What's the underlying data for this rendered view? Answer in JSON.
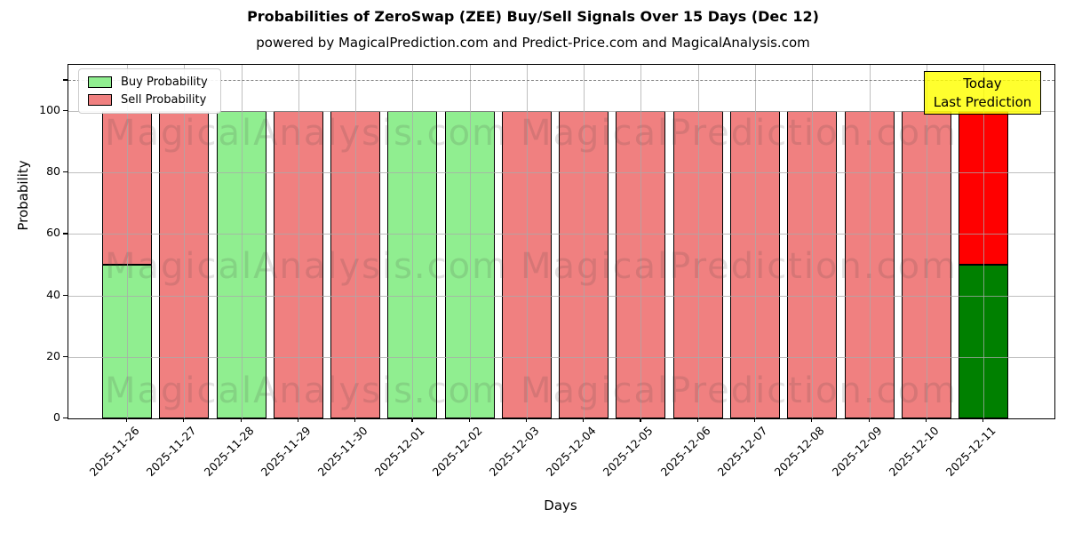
{
  "title": "Probabilities of ZeroSwap (ZEE) Buy/Sell Signals Over 15 Days (Dec 12)",
  "subtitle": "powered by MagicalPrediction.com and Predict-Price.com and MagicalAnalysis.com",
  "watermarks": {
    "left": "MagicalAnalysis.com",
    "right": "MagicalPrediction.com"
  },
  "annotation_box": {
    "line1": "Today",
    "line2": "Last Prediction",
    "background": "#ffff00"
  },
  "legend": {
    "items": [
      {
        "label": "Buy Probability",
        "color": "#90ee90"
      },
      {
        "label": "Sell Probability",
        "color": "#f08080"
      }
    ]
  },
  "colors": {
    "buy_normal": "#90ee90",
    "sell_normal": "#f08080",
    "buy_today": "#008000",
    "sell_today": "#ff0000",
    "grid": "#aaaaaa",
    "dashed_line": "#7f7f7f",
    "annotation_bg": "#ffff00"
  },
  "chart_data": {
    "type": "bar",
    "stacked": true,
    "title": "Probabilities of ZeroSwap (ZEE) Buy/Sell Signals Over 15 Days (Dec 12)",
    "xlabel": "Days",
    "ylabel": "Probability",
    "ylim": [
      0,
      115
    ],
    "yticks": [
      0,
      20,
      40,
      60,
      80,
      100
    ],
    "dashed_line_y": 110,
    "grid": true,
    "legend_position": "upper left",
    "categories": [
      "2025-11-26",
      "2025-11-27",
      "2025-11-28",
      "2025-11-29",
      "2025-11-30",
      "2025-12-01",
      "2025-12-02",
      "2025-12-03",
      "2025-12-04",
      "2025-12-05",
      "2025-12-06",
      "2025-12-07",
      "2025-12-08",
      "2025-12-09",
      "2025-12-10",
      "2025-12-11"
    ],
    "series": [
      {
        "name": "Buy Probability",
        "values": [
          50,
          0,
          100,
          0,
          0,
          100,
          100,
          0,
          0,
          0,
          0,
          0,
          0,
          0,
          0,
          50
        ]
      },
      {
        "name": "Sell Probability",
        "values": [
          50,
          100,
          0,
          100,
          100,
          0,
          0,
          100,
          100,
          100,
          100,
          100,
          100,
          100,
          100,
          50
        ]
      }
    ],
    "today_index": 15,
    "today_label": [
      "Today",
      "Last Prediction"
    ]
  }
}
